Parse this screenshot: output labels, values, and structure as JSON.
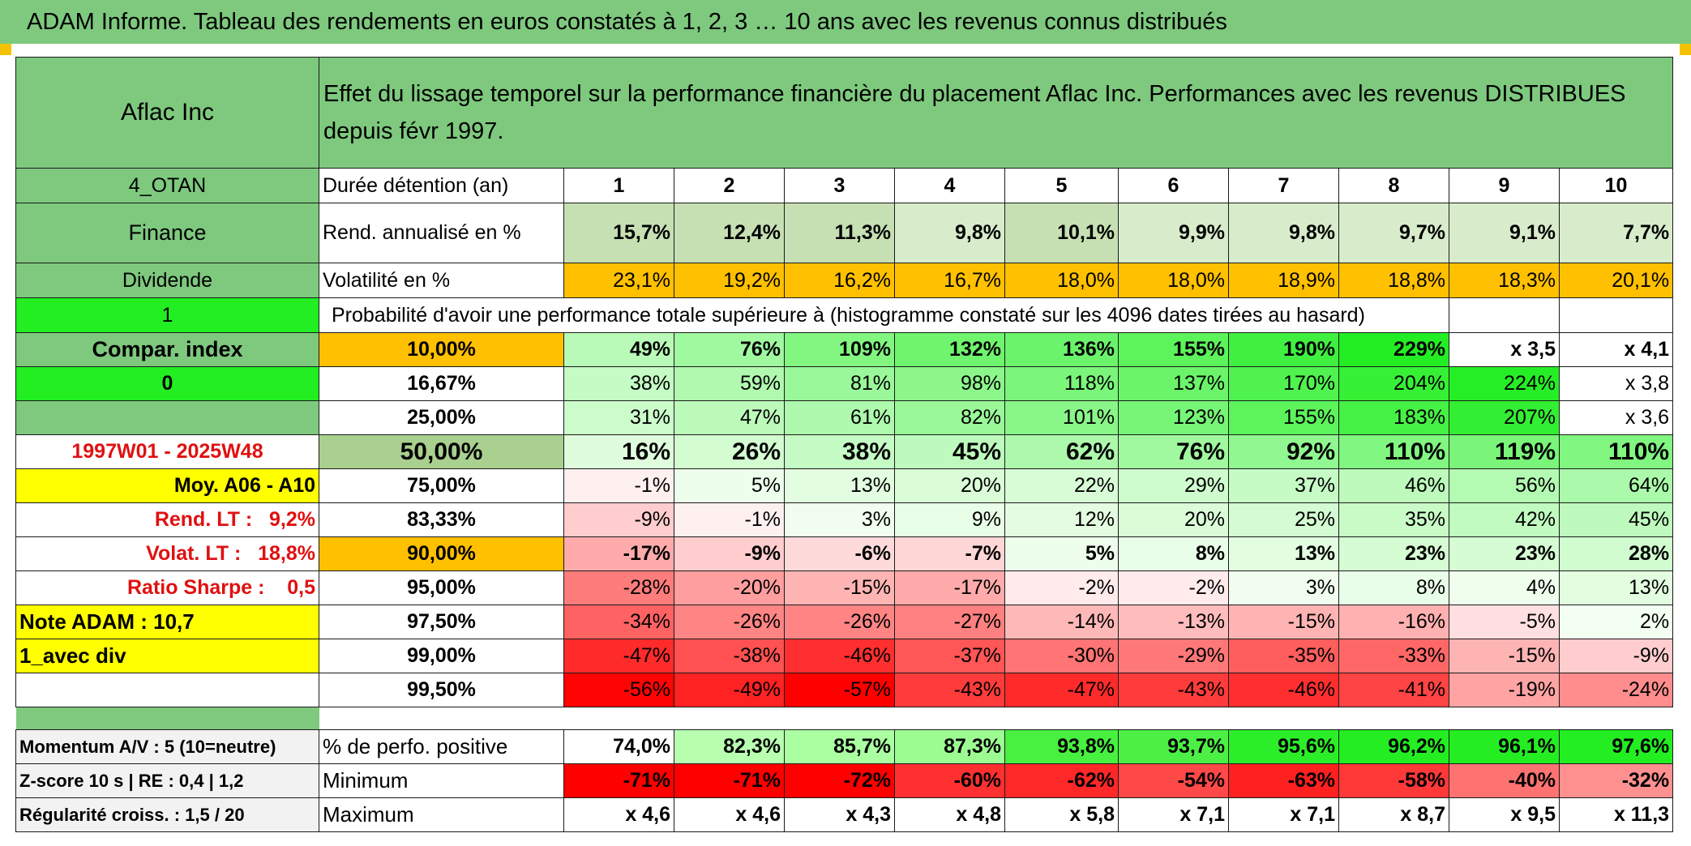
{
  "header": {
    "title": "ADAM Informe. Tableau des rendements en euros constatés à 1, 2, 3 … 10 ans avec les revenus connus distribués"
  },
  "colors": {
    "banner_green": "#7ec97e",
    "orange": "#ffc000",
    "yellow": "#ffff00",
    "bright_green": "#22ee22",
    "red_text": "#e01010"
  },
  "left": {
    "company": "Aflac Inc",
    "code": "4_OTAN",
    "sector": "Finance",
    "type": "Dividende",
    "flag1": "1",
    "compar": "Compar. index",
    "flag0": "0",
    "period": "1997W01 - 2025W48",
    "moy": "Moy. A06 - A10",
    "rend_lt": "Rend. LT :   9,2%",
    "volat_lt": "Volat. LT :   18,8%",
    "sharpe": "Ratio Sharpe :    0,5",
    "note": "Note ADAM : 10,7",
    "avec_div": "1_avec div",
    "momentum": "Momentum A/V : 5 (10=neutre)",
    "zscore": "Z-score 10 s | RE : 0,4 | 1,2",
    "regularite": "Régularité croiss. : 1,5 / 20"
  },
  "main": {
    "description": "Effet du lissage temporel sur la performance financière du placement Aflac Inc. Performances avec les revenus DISTRIBUES depuis févr 1997.",
    "duree_label": "Durée détention (an)",
    "years": [
      "1",
      "2",
      "3",
      "4",
      "5",
      "6",
      "7",
      "8",
      "9",
      "10"
    ],
    "rend_label": "Rend. annualisé en %",
    "rend": [
      "15,7%",
      "12,4%",
      "11,3%",
      "9,8%",
      "10,1%",
      "9,9%",
      "9,8%",
      "9,7%",
      "9,1%",
      "7,7%"
    ],
    "vol_label": "Volatilité en %",
    "vol": [
      "23,1%",
      "19,2%",
      "16,2%",
      "16,7%",
      "18,0%",
      "18,0%",
      "18,9%",
      "18,8%",
      "18,3%",
      "20,1%"
    ],
    "proba_label": "Probabilité d'avoir une performance totale supérieure à (histogramme constaté sur les 4096 dates tirées au hasard)",
    "quantiles": [
      {
        "pct": "10,00%",
        "vals": [
          "49%",
          "76%",
          "109%",
          "132%",
          "136%",
          "155%",
          "190%",
          "229%",
          "x 3,5",
          "x 4,1"
        ]
      },
      {
        "pct": "16,67%",
        "vals": [
          "38%",
          "59%",
          "81%",
          "98%",
          "118%",
          "137%",
          "170%",
          "204%",
          "224%",
          "x 3,8"
        ]
      },
      {
        "pct": "25,00%",
        "vals": [
          "31%",
          "47%",
          "61%",
          "82%",
          "101%",
          "123%",
          "155%",
          "183%",
          "207%",
          "x 3,6"
        ]
      },
      {
        "pct": "50,00%",
        "vals": [
          "16%",
          "26%",
          "38%",
          "45%",
          "62%",
          "76%",
          "92%",
          "110%",
          "119%",
          "110%"
        ]
      },
      {
        "pct": "75,00%",
        "vals": [
          "-1%",
          "5%",
          "13%",
          "20%",
          "22%",
          "29%",
          "37%",
          "46%",
          "56%",
          "64%"
        ]
      },
      {
        "pct": "83,33%",
        "vals": [
          "-9%",
          "-1%",
          "3%",
          "9%",
          "12%",
          "20%",
          "25%",
          "35%",
          "42%",
          "45%"
        ]
      },
      {
        "pct": "90,00%",
        "vals": [
          "-17%",
          "-9%",
          "-6%",
          "-7%",
          "5%",
          "8%",
          "13%",
          "23%",
          "23%",
          "28%"
        ]
      },
      {
        "pct": "95,00%",
        "vals": [
          "-28%",
          "-20%",
          "-15%",
          "-17%",
          "-2%",
          "-2%",
          "3%",
          "8%",
          "4%",
          "13%"
        ]
      },
      {
        "pct": "97,50%",
        "vals": [
          "-34%",
          "-26%",
          "-26%",
          "-27%",
          "-14%",
          "-13%",
          "-15%",
          "-16%",
          "-5%",
          "2%"
        ]
      },
      {
        "pct": "99,00%",
        "vals": [
          "-47%",
          "-38%",
          "-46%",
          "-37%",
          "-30%",
          "-29%",
          "-35%",
          "-33%",
          "-15%",
          "-9%"
        ]
      },
      {
        "pct": "99,50%",
        "vals": [
          "-56%",
          "-49%",
          "-57%",
          "-43%",
          "-47%",
          "-43%",
          "-46%",
          "-41%",
          "-19%",
          "-24%"
        ]
      }
    ],
    "positive_label": "% de perfo. positive",
    "positive": [
      "74,0%",
      "82,3%",
      "85,7%",
      "87,3%",
      "93,8%",
      "93,7%",
      "95,6%",
      "96,2%",
      "96,1%",
      "97,6%"
    ],
    "min_label": "Minimum",
    "min": [
      "-71%",
      "-71%",
      "-72%",
      "-60%",
      "-62%",
      "-54%",
      "-63%",
      "-58%",
      "-40%",
      "-32%"
    ],
    "max_label": "Maximum",
    "max": [
      "x 4,6",
      "x 4,6",
      "x 4,3",
      "x 4,8",
      "x 5,8",
      "x 7,1",
      "x 7,1",
      "x 8,7",
      "x 9,5",
      "x 11,3"
    ]
  }
}
